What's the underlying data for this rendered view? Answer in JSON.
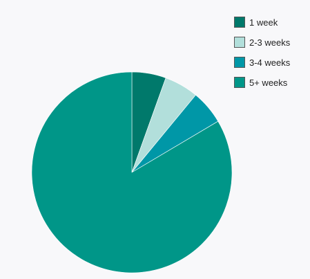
{
  "chart_data": {
    "type": "pie",
    "title": "",
    "slices": [
      {
        "label": "1 week",
        "value": 5.5,
        "color": "#00796b"
      },
      {
        "label": "2-3 weeks",
        "value": 5.5,
        "color": "#b2dfdb"
      },
      {
        "label": "3-4 weeks",
        "value": 5.5,
        "color": "#0097a7"
      },
      {
        "label": "5+ weeks",
        "value": 83.5,
        "color": "#009688"
      }
    ],
    "legend_position": "top-right",
    "start_angle": "12 o'clock",
    "direction": "clockwise"
  }
}
